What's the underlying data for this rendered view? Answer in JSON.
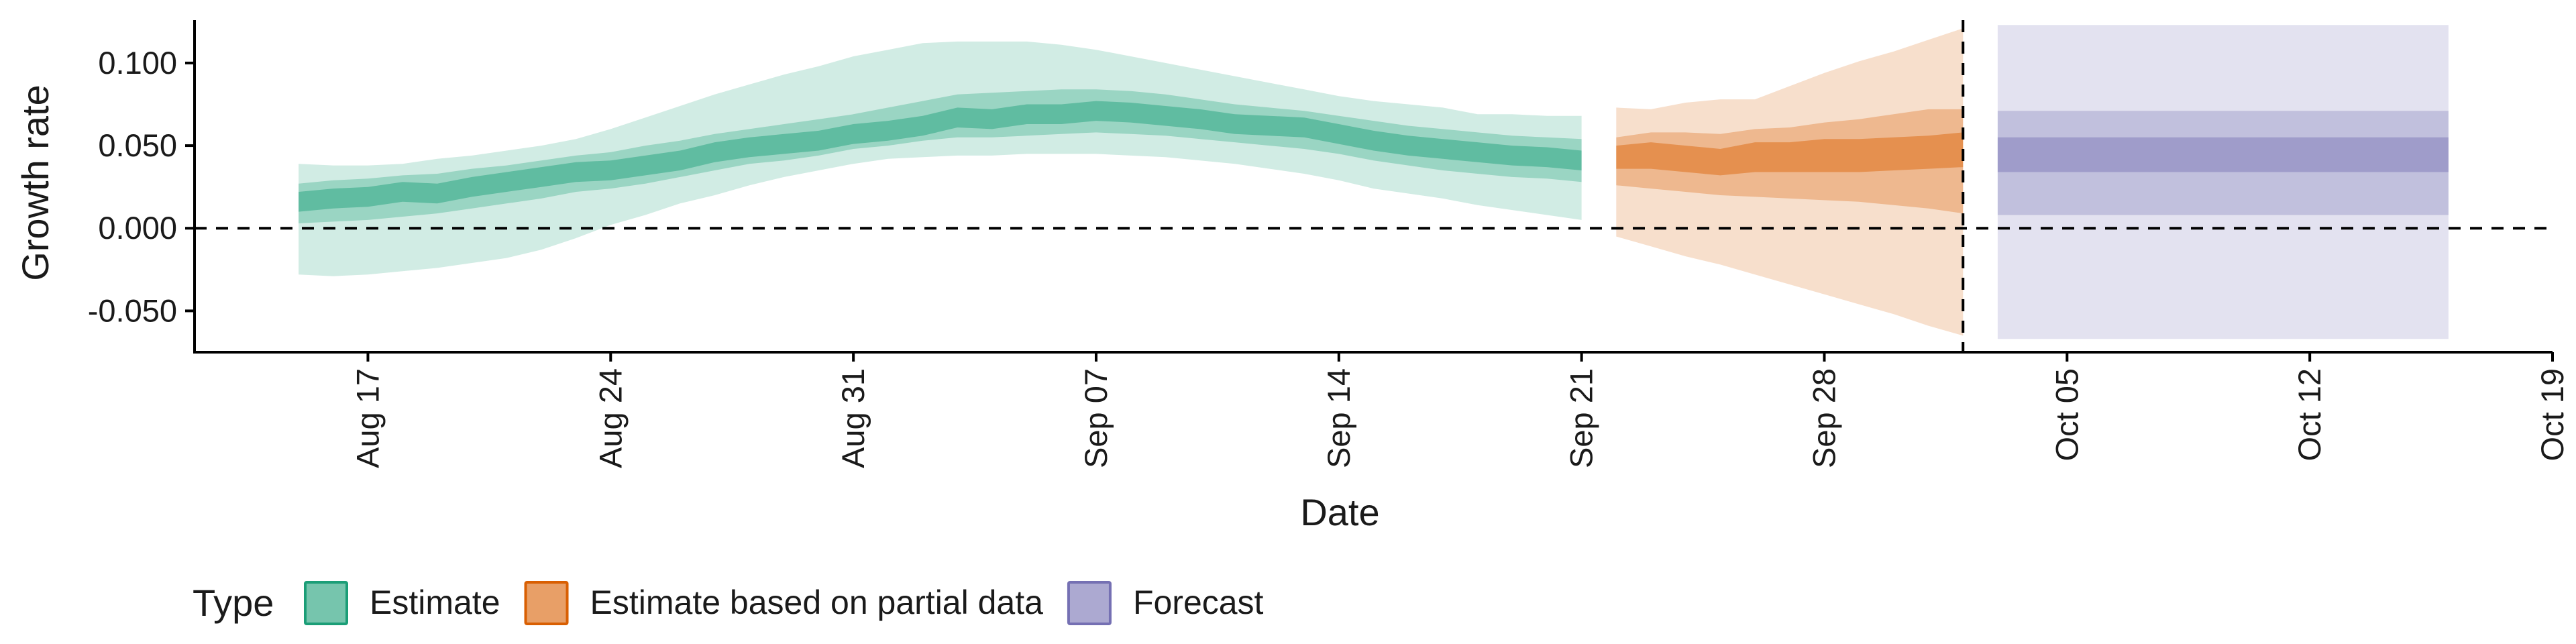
{
  "chart_data": {
    "type": "area",
    "title": "",
    "xlabel": "Date",
    "ylabel": "Growth rate",
    "x_ticks": [
      "Aug 17",
      "Aug 24",
      "Aug 31",
      "Sep 07",
      "Sep 14",
      "Sep 21",
      "Sep 28",
      "Oct 05",
      "Oct 12",
      "Oct 19"
    ],
    "y_ticks": [
      "0.100",
      "0.050",
      "0.000",
      "-0.050"
    ],
    "y_tick_values": [
      0.1,
      0.05,
      0.0,
      -0.05
    ],
    "xlim": [
      "2020-08-12",
      "2020-10-19"
    ],
    "ylim": [
      -0.075,
      0.13
    ],
    "zero_line": 0.0,
    "forecast_start": "2020-10-02",
    "legend": {
      "title": "Type",
      "position": "bottom-left",
      "entries": [
        {
          "label": "Estimate",
          "color": "#1b9e77"
        },
        {
          "label": "Estimate based on partial data",
          "color": "#d95f02"
        },
        {
          "label": "Forecast",
          "color": "#7570b3"
        }
      ]
    },
    "series": [
      {
        "type": "Estimate",
        "color": "#1b9e77",
        "x": [
          "2020-08-15",
          "2020-08-16",
          "2020-08-17",
          "2020-08-18",
          "2020-08-19",
          "2020-08-20",
          "2020-08-21",
          "2020-08-22",
          "2020-08-23",
          "2020-08-24",
          "2020-08-25",
          "2020-08-26",
          "2020-08-27",
          "2020-08-28",
          "2020-08-29",
          "2020-08-30",
          "2020-08-31",
          "2020-09-01",
          "2020-09-02",
          "2020-09-03",
          "2020-09-04",
          "2020-09-05",
          "2020-09-06",
          "2020-09-07",
          "2020-09-08",
          "2020-09-09",
          "2020-09-10",
          "2020-09-11",
          "2020-09-12",
          "2020-09-13",
          "2020-09-14",
          "2020-09-15",
          "2020-09-16",
          "2020-09-17",
          "2020-09-18",
          "2020-09-19",
          "2020-09-20",
          "2020-09-21"
        ],
        "median": [
          0.016,
          0.018,
          0.019,
          0.022,
          0.021,
          0.025,
          0.028,
          0.031,
          0.034,
          0.035,
          0.038,
          0.041,
          0.046,
          0.049,
          0.051,
          0.053,
          0.057,
          0.059,
          0.062,
          0.067,
          0.066,
          0.069,
          0.069,
          0.071,
          0.07,
          0.068,
          0.066,
          0.063,
          0.062,
          0.061,
          0.057,
          0.053,
          0.05,
          0.048,
          0.046,
          0.044,
          0.043,
          0.041
        ],
        "lower_20": [
          0.01,
          0.012,
          0.013,
          0.016,
          0.015,
          0.019,
          0.022,
          0.025,
          0.028,
          0.029,
          0.032,
          0.035,
          0.04,
          0.043,
          0.045,
          0.047,
          0.051,
          0.053,
          0.056,
          0.061,
          0.06,
          0.063,
          0.063,
          0.065,
          0.064,
          0.062,
          0.06,
          0.057,
          0.056,
          0.055,
          0.051,
          0.047,
          0.044,
          0.042,
          0.04,
          0.038,
          0.037,
          0.035
        ],
        "upper_20": [
          0.022,
          0.024,
          0.025,
          0.028,
          0.027,
          0.031,
          0.034,
          0.037,
          0.04,
          0.041,
          0.044,
          0.047,
          0.052,
          0.055,
          0.057,
          0.059,
          0.063,
          0.065,
          0.068,
          0.073,
          0.072,
          0.075,
          0.075,
          0.077,
          0.076,
          0.074,
          0.072,
          0.069,
          0.068,
          0.067,
          0.063,
          0.059,
          0.056,
          0.054,
          0.052,
          0.05,
          0.049,
          0.047
        ],
        "lower_50": [
          0.003,
          0.004,
          0.005,
          0.007,
          0.009,
          0.012,
          0.015,
          0.018,
          0.022,
          0.024,
          0.027,
          0.031,
          0.035,
          0.039,
          0.041,
          0.044,
          0.048,
          0.05,
          0.053,
          0.055,
          0.055,
          0.056,
          0.057,
          0.058,
          0.057,
          0.056,
          0.054,
          0.052,
          0.05,
          0.048,
          0.045,
          0.041,
          0.038,
          0.035,
          0.033,
          0.031,
          0.03,
          0.028
        ],
        "upper_50": [
          0.027,
          0.029,
          0.03,
          0.032,
          0.033,
          0.036,
          0.038,
          0.041,
          0.044,
          0.046,
          0.05,
          0.053,
          0.057,
          0.06,
          0.063,
          0.066,
          0.069,
          0.073,
          0.077,
          0.081,
          0.082,
          0.083,
          0.084,
          0.084,
          0.083,
          0.081,
          0.078,
          0.075,
          0.073,
          0.071,
          0.068,
          0.065,
          0.062,
          0.06,
          0.058,
          0.056,
          0.055,
          0.054
        ],
        "lower_90": [
          -0.028,
          -0.029,
          -0.028,
          -0.026,
          -0.024,
          -0.021,
          -0.018,
          -0.013,
          -0.006,
          0.002,
          0.008,
          0.015,
          0.02,
          0.026,
          0.031,
          0.035,
          0.039,
          0.042,
          0.043,
          0.044,
          0.044,
          0.045,
          0.045,
          0.045,
          0.044,
          0.043,
          0.041,
          0.039,
          0.036,
          0.033,
          0.029,
          0.024,
          0.021,
          0.018,
          0.014,
          0.011,
          0.008,
          0.005
        ],
        "upper_90": [
          0.039,
          0.038,
          0.038,
          0.039,
          0.042,
          0.044,
          0.047,
          0.05,
          0.054,
          0.06,
          0.067,
          0.074,
          0.081,
          0.087,
          0.093,
          0.098,
          0.104,
          0.108,
          0.112,
          0.113,
          0.113,
          0.113,
          0.111,
          0.108,
          0.104,
          0.1,
          0.096,
          0.092,
          0.088,
          0.084,
          0.08,
          0.077,
          0.075,
          0.073,
          0.069,
          0.069,
          0.068,
          0.068
        ]
      },
      {
        "type": "Estimate based on partial data",
        "color": "#d95f02",
        "x": [
          "2020-09-22",
          "2020-09-23",
          "2020-09-24",
          "2020-09-25",
          "2020-09-26",
          "2020-09-27",
          "2020-09-28",
          "2020-09-29",
          "2020-09-30",
          "2020-10-01",
          "2020-10-02"
        ],
        "median": [
          0.043,
          0.044,
          0.042,
          0.04,
          0.043,
          0.043,
          0.044,
          0.044,
          0.045,
          0.046,
          0.048
        ],
        "lower_20": [
          0.036,
          0.036,
          0.034,
          0.032,
          0.034,
          0.034,
          0.034,
          0.034,
          0.035,
          0.036,
          0.037
        ],
        "upper_20": [
          0.05,
          0.052,
          0.05,
          0.048,
          0.052,
          0.052,
          0.054,
          0.054,
          0.055,
          0.056,
          0.058
        ],
        "lower_50": [
          0.026,
          0.024,
          0.022,
          0.02,
          0.019,
          0.018,
          0.017,
          0.016,
          0.014,
          0.012,
          0.009
        ],
        "upper_50": [
          0.055,
          0.058,
          0.058,
          0.057,
          0.06,
          0.061,
          0.064,
          0.066,
          0.069,
          0.072,
          0.072
        ],
        "lower_90": [
          -0.005,
          -0.011,
          -0.017,
          -0.022,
          -0.028,
          -0.034,
          -0.04,
          -0.046,
          -0.052,
          -0.059,
          -0.065
        ],
        "upper_90": [
          0.073,
          0.072,
          0.076,
          0.078,
          0.078,
          0.086,
          0.094,
          0.101,
          0.107,
          0.114,
          0.121
        ]
      },
      {
        "type": "Forecast",
        "color": "#7570b3",
        "x": [
          "2020-10-03",
          "2020-10-16"
        ],
        "median": [
          0.045,
          0.045
        ],
        "lower_20": [
          0.034,
          0.034
        ],
        "upper_20": [
          0.055,
          0.055
        ],
        "lower_50": [
          0.008,
          0.008
        ],
        "upper_50": [
          0.071,
          0.071
        ],
        "lower_90": [
          -0.067,
          -0.067
        ],
        "upper_90": [
          0.123,
          0.123
        ]
      }
    ]
  }
}
